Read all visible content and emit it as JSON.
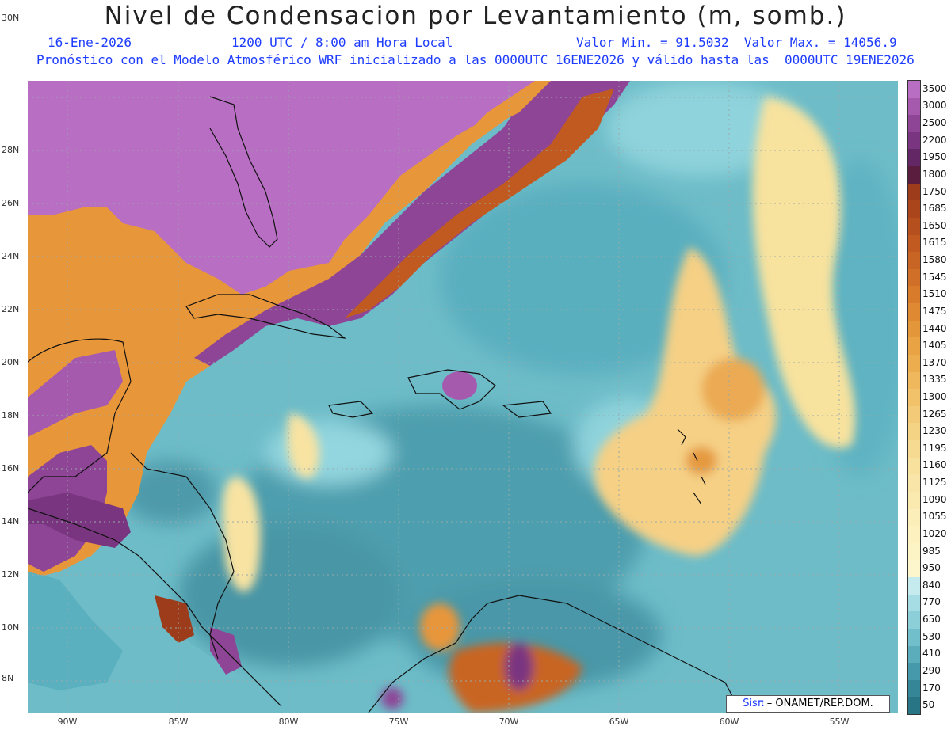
{
  "header": {
    "title": "Nivel de Condensacion por Levantamiento (m, somb.)",
    "date": "16-Ene-2026",
    "time": "1200 UTC / 8:00 am Hora Local",
    "min_max": "Valor Min. = 91.5032  Valor Max. = 14056.9",
    "model_line": "Pronóstico con el Modelo Atmosférico WRF inicializado a las 0000UTC_16ENE2026 y válido hasta las  0000UTC_19ENE2026"
  },
  "axes": {
    "lat_labels": [
      "30N",
      "28N",
      "26N",
      "24N",
      "22N",
      "20N",
      "18N",
      "16N",
      "14N",
      "12N",
      "10N",
      "8N"
    ],
    "lon_labels": [
      "90W",
      "85W",
      "80W",
      "75W",
      "70W",
      "65W",
      "60W",
      "55W"
    ]
  },
  "colorbar": {
    "labels": [
      "3500",
      "3000",
      "2500",
      "2200",
      "1950",
      "1800",
      "1750",
      "1685",
      "1650",
      "1615",
      "1580",
      "1545",
      "1510",
      "1475",
      "1440",
      "1405",
      "1370",
      "1335",
      "1300",
      "1265",
      "1230",
      "1195",
      "1160",
      "1125",
      "1090",
      "1055",
      "1020",
      "985",
      "950",
      "840",
      "770",
      "650",
      "530",
      "410",
      "290",
      "170",
      "50"
    ],
    "colors": [
      "#b86fc3",
      "#a65aae",
      "#8e4596",
      "#7a3580",
      "#642766",
      "#5a1d3e",
      "#9c3c1a",
      "#a9441b",
      "#b64f1e",
      "#c05a20",
      "#c96524",
      "#d07028",
      "#d87c2c",
      "#df8a33",
      "#e4963b",
      "#e9a244",
      "#ecad4f",
      "#efb85c",
      "#f1c26a",
      "#f3cb78",
      "#f5d385",
      "#f7da92",
      "#f8e09d",
      "#f9e5a7",
      "#faeab0",
      "#fbeeb8",
      "#fcf1bf",
      "#fdf4c6",
      "#fdf6cc",
      "#c6ebee",
      "#a6dde4",
      "#8ccfd9",
      "#72bfcc",
      "#5badbc",
      "#4699aa",
      "#358798",
      "#277585"
    ]
  },
  "credit": {
    "sis": "Sisπ",
    "rest": " – ONAMET/REP.DOM."
  },
  "map_legend": {
    "land_dry": "Purple/orange shading over Florida, Gulf, Yucatan, Central America",
    "sea": "teal shading over Caribbean Sea and Atlantic"
  }
}
